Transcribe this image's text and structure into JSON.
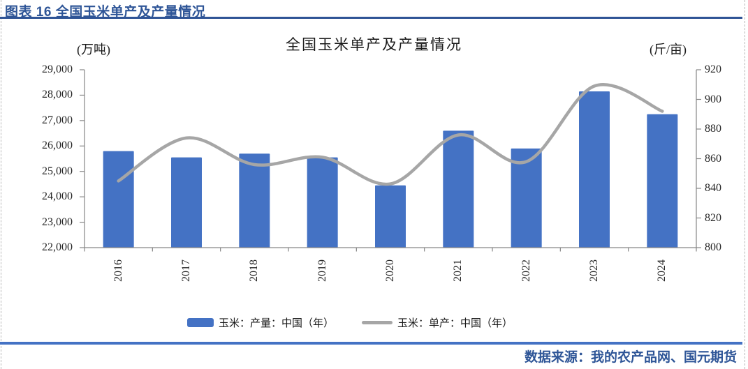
{
  "figure": {
    "caption": "图表 16 全国玉米单产及产量情况",
    "source": "数据来源：我的农产品网、国元期货"
  },
  "colors": {
    "caption_blue": "#2E5597",
    "caption_rule_blue": "#2F5496",
    "footer_rule_blue": "#4472C4",
    "bar_blue": "#4472C4",
    "line_gray": "#A6A6A6",
    "axis_gray": "#868686",
    "tick_text": "#262626"
  },
  "chart_data": {
    "type": "bar",
    "subtype": "combo-bar-line-dual-axis",
    "title": "全国玉米单产及产量情况",
    "categories": [
      "2016",
      "2017",
      "2018",
      "2019",
      "2020",
      "2021",
      "2022",
      "2023",
      "2024"
    ],
    "series": [
      {
        "name": "玉米：产量：中国（年）",
        "type": "bar",
        "axis": "left",
        "color": "#4472C4",
        "values": [
          25800,
          25550,
          25700,
          25550,
          24450,
          26600,
          25900,
          28150,
          27250
        ]
      },
      {
        "name": "玉米：单产：中国（年）",
        "type": "line",
        "axis": "right",
        "color": "#A6A6A6",
        "values": [
          845,
          874,
          856,
          861,
          843,
          876,
          858,
          909,
          892
        ]
      }
    ],
    "left_axis": {
      "unit": "(万吨)",
      "min": 22000,
      "max": 29000,
      "step": 1000,
      "tick_labels": [
        "22,000",
        "23,000",
        "24,000",
        "25,000",
        "26,000",
        "27,000",
        "28,000",
        "29,000"
      ]
    },
    "right_axis": {
      "unit": "(斤/亩)",
      "min": 800,
      "max": 920,
      "step": 20,
      "tick_labels": [
        "800",
        "820",
        "840",
        "860",
        "880",
        "900",
        "920"
      ]
    },
    "grid": false,
    "legend_position": "bottom-center"
  }
}
